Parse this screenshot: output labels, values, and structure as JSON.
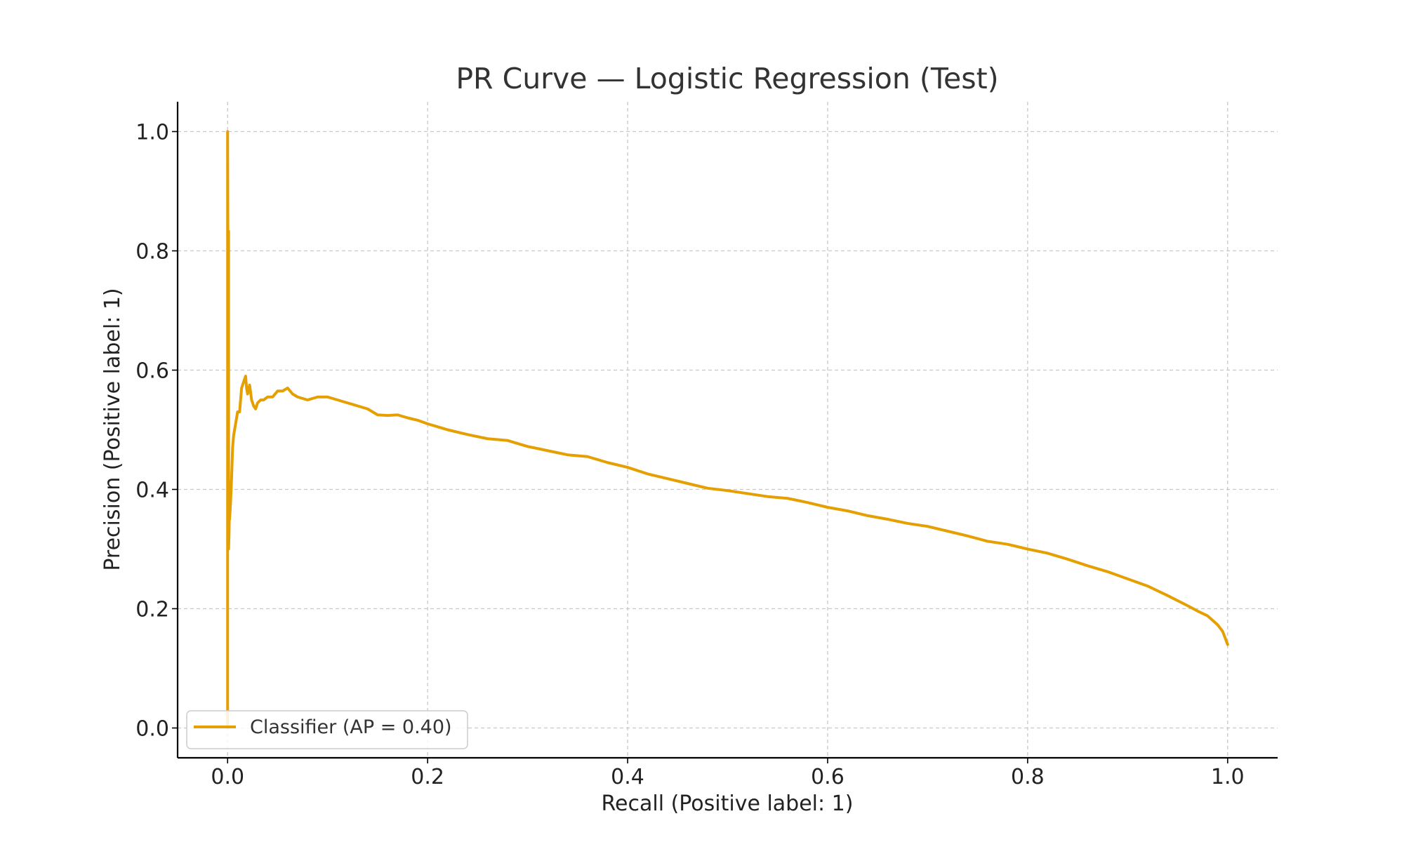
{
  "chart_data": {
    "type": "line",
    "title": "PR Curve — Logistic Regression (Test)",
    "xlabel": "Recall (Positive label: 1)",
    "ylabel": "Precision (Positive label: 1)",
    "xlim": [
      -0.05,
      1.05
    ],
    "ylim": [
      -0.05,
      1.05
    ],
    "xticks": [
      "0.0",
      "0.2",
      "0.4",
      "0.6",
      "0.8",
      "1.0"
    ],
    "yticks": [
      "0.0",
      "0.2",
      "0.4",
      "0.6",
      "0.8",
      "1.0"
    ],
    "grid": true,
    "legend_position": "lower-left",
    "colors": {
      "series": "#E69F00",
      "grid": "#c8c8c8",
      "axis": "#000000"
    },
    "series": [
      {
        "name": "Classifier (AP = 0.40)",
        "x": [
          0.0,
          0.0,
          0.0005,
          0.001,
          0.001,
          0.0015,
          0.002,
          0.002,
          0.003,
          0.004,
          0.005,
          0.006,
          0.008,
          0.01,
          0.012,
          0.014,
          0.016,
          0.018,
          0.019,
          0.02,
          0.022,
          0.024,
          0.026,
          0.028,
          0.03,
          0.033,
          0.036,
          0.04,
          0.045,
          0.05,
          0.055,
          0.06,
          0.065,
          0.07,
          0.08,
          0.09,
          0.1,
          0.11,
          0.12,
          0.13,
          0.14,
          0.15,
          0.16,
          0.17,
          0.18,
          0.19,
          0.2,
          0.22,
          0.24,
          0.26,
          0.28,
          0.3,
          0.32,
          0.34,
          0.36,
          0.38,
          0.4,
          0.42,
          0.44,
          0.46,
          0.48,
          0.5,
          0.52,
          0.54,
          0.56,
          0.58,
          0.6,
          0.62,
          0.64,
          0.66,
          0.68,
          0.7,
          0.72,
          0.74,
          0.76,
          0.78,
          0.8,
          0.82,
          0.84,
          0.86,
          0.88,
          0.9,
          0.92,
          0.94,
          0.96,
          0.97,
          0.98,
          0.99,
          0.995,
          1.0
        ],
        "y": [
          0.0,
          1.0,
          0.667,
          0.833,
          0.3,
          0.33,
          0.4,
          0.35,
          0.38,
          0.42,
          0.47,
          0.49,
          0.51,
          0.53,
          0.53,
          0.57,
          0.58,
          0.59,
          0.57,
          0.56,
          0.575,
          0.55,
          0.54,
          0.535,
          0.545,
          0.55,
          0.55,
          0.555,
          0.555,
          0.565,
          0.565,
          0.57,
          0.56,
          0.555,
          0.55,
          0.555,
          0.555,
          0.55,
          0.545,
          0.54,
          0.535,
          0.525,
          0.524,
          0.525,
          0.52,
          0.516,
          0.51,
          0.5,
          0.492,
          0.485,
          0.482,
          0.472,
          0.465,
          0.458,
          0.455,
          0.445,
          0.437,
          0.426,
          0.418,
          0.41,
          0.402,
          0.398,
          0.393,
          0.388,
          0.385,
          0.378,
          0.37,
          0.364,
          0.356,
          0.35,
          0.343,
          0.338,
          0.33,
          0.322,
          0.313,
          0.308,
          0.3,
          0.293,
          0.283,
          0.272,
          0.262,
          0.25,
          0.238,
          0.222,
          0.205,
          0.196,
          0.188,
          0.173,
          0.162,
          0.14
        ]
      }
    ]
  }
}
